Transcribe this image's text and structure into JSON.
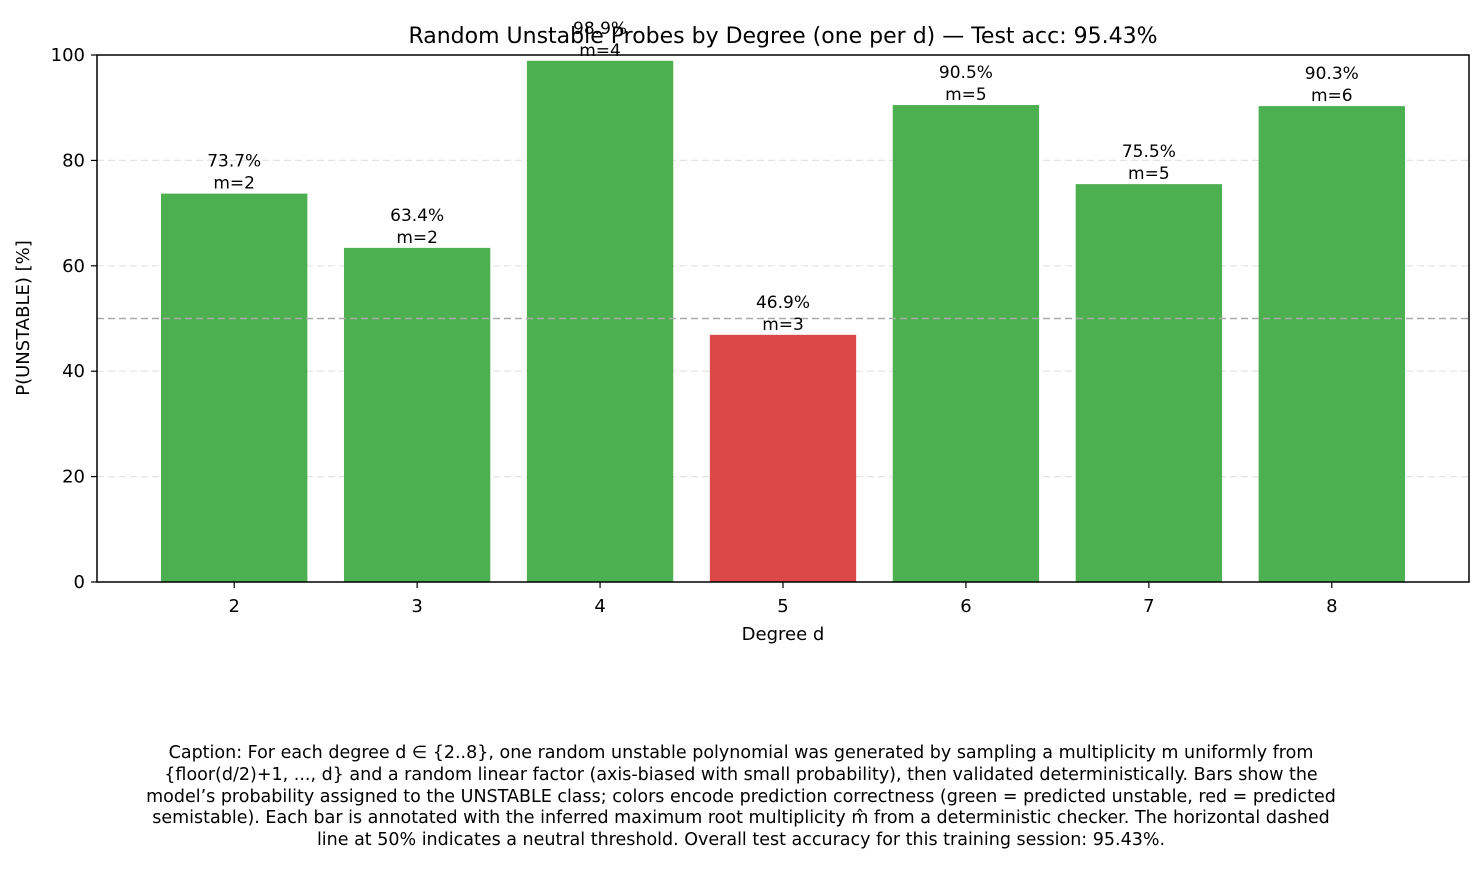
{
  "chart_data": {
    "type": "bar",
    "title": "Random Unstable Probes by Degree (one per d) — Test acc: 95.43%",
    "xlabel": "Degree d",
    "ylabel": "P(UNSTABLE) [%]",
    "ylim": [
      0,
      100
    ],
    "yticks": [
      "0",
      "20",
      "40",
      "60",
      "80",
      "100"
    ],
    "categories": [
      "2",
      "3",
      "4",
      "5",
      "6",
      "7",
      "8"
    ],
    "values": [
      73.7,
      63.4,
      98.9,
      46.9,
      90.5,
      75.5,
      90.3
    ],
    "value_labels": [
      "73.7%",
      "63.4%",
      "98.9%",
      "46.9%",
      "90.5%",
      "75.5%",
      "90.3%"
    ],
    "multiplicity_labels": [
      "m=2",
      "m=2",
      "m=4",
      "m=3",
      "m=5",
      "m=5",
      "m=6"
    ],
    "bar_colors": [
      "#4caf50",
      "#4caf50",
      "#4caf50",
      "#dc4848",
      "#4caf50",
      "#4caf50",
      "#4caf50"
    ],
    "threshold": 50,
    "grid": "horizontal dashed"
  },
  "caption": "Caption: For each degree d ∈ {2..8}, one random unstable polynomial was generated by sampling a multiplicity m uniformly from {floor(d/2)+1, ..., d} and a random linear factor (axis-biased with small probability), then validated deterministically. Bars show the model’s probability assigned to the UNSTABLE class; colors encode prediction correctness (green = predicted unstable, red = predicted semistable). Each bar is annotated with the inferred maximum root multiplicity m̂ from a deterministic checker. The horizontal dashed line at 50% indicates a neutral threshold. Overall test accuracy for this training session: 95.43%."
}
